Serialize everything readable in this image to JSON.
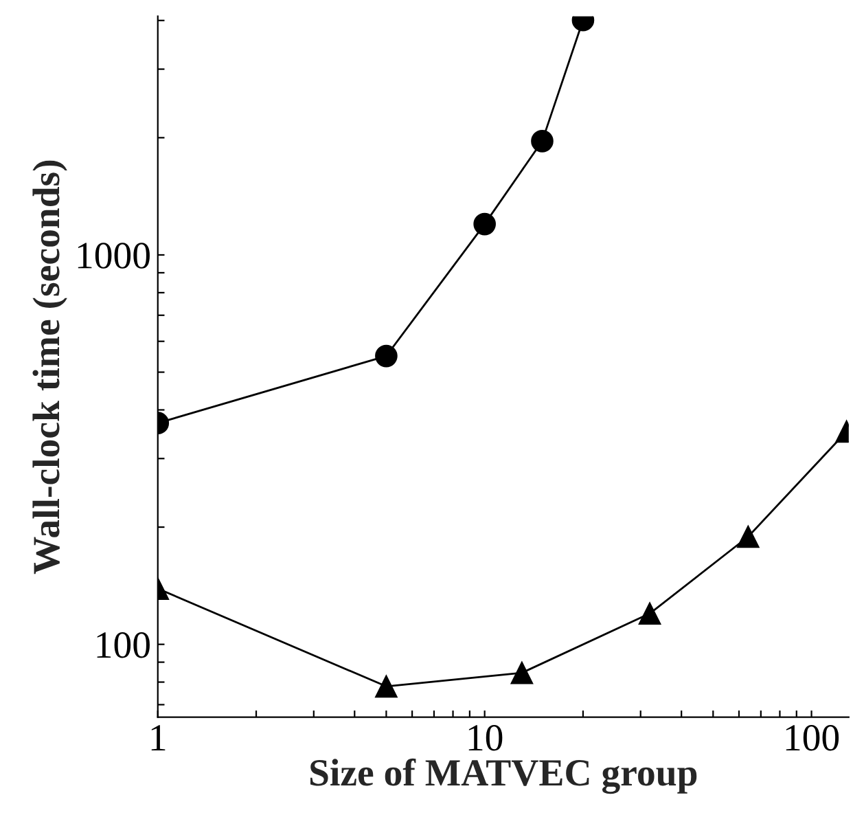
{
  "chart_data": {
    "type": "line",
    "xlabel": "Size of MATVEC group",
    "ylabel": "Wall-clock time (seconds)",
    "log": "xy",
    "grid": false,
    "xlim": [
      1,
      130
    ],
    "ylim": [
      65,
      4100
    ],
    "xticks": [
      1,
      {
        "value": 2,
        "label": null
      },
      {
        "value": 3,
        "label": null
      },
      {
        "value": 4,
        "label": null
      },
      {
        "value": 5,
        "label": null
      },
      {
        "value": 6,
        "label": null
      },
      {
        "value": 7,
        "label": null
      },
      {
        "value": 8,
        "label": null
      },
      {
        "value": 9,
        "label": null
      },
      10,
      {
        "value": 20,
        "label": null
      },
      {
        "value": 30,
        "label": null
      },
      {
        "value": 40,
        "label": null
      },
      {
        "value": 50,
        "label": null
      },
      {
        "value": 60,
        "label": null
      },
      {
        "value": 70,
        "label": null
      },
      {
        "value": 80,
        "label": null
      },
      {
        "value": 90,
        "label": null
      },
      100
    ],
    "yticks": [
      {
        "value": 70,
        "label": null
      },
      {
        "value": 80,
        "label": null
      },
      {
        "value": 90,
        "label": null
      },
      100,
      {
        "value": 200,
        "label": null
      },
      {
        "value": 300,
        "label": null
      },
      {
        "value": 400,
        "label": null
      },
      {
        "value": 500,
        "label": null
      },
      {
        "value": 600,
        "label": null
      },
      {
        "value": 700,
        "label": null
      },
      {
        "value": 800,
        "label": null
      },
      {
        "value": 900,
        "label": null
      },
      1000,
      {
        "value": 2000,
        "label": null
      },
      {
        "value": 3000,
        "label": null
      },
      {
        "value": 4000,
        "label": null
      }
    ],
    "line_style": "solid",
    "series": [
      {
        "color": "#000000",
        "marker": "circle",
        "x": [
          1,
          5,
          10,
          15,
          20
        ],
        "values": [
          370,
          550,
          1200,
          1960,
          4010
        ]
      },
      {
        "color": "#000000",
        "marker": "triangle",
        "x": [
          1,
          5,
          13,
          32,
          64,
          128
        ],
        "values": [
          139,
          78,
          84.5,
          120,
          189,
          352
        ]
      }
    ]
  }
}
